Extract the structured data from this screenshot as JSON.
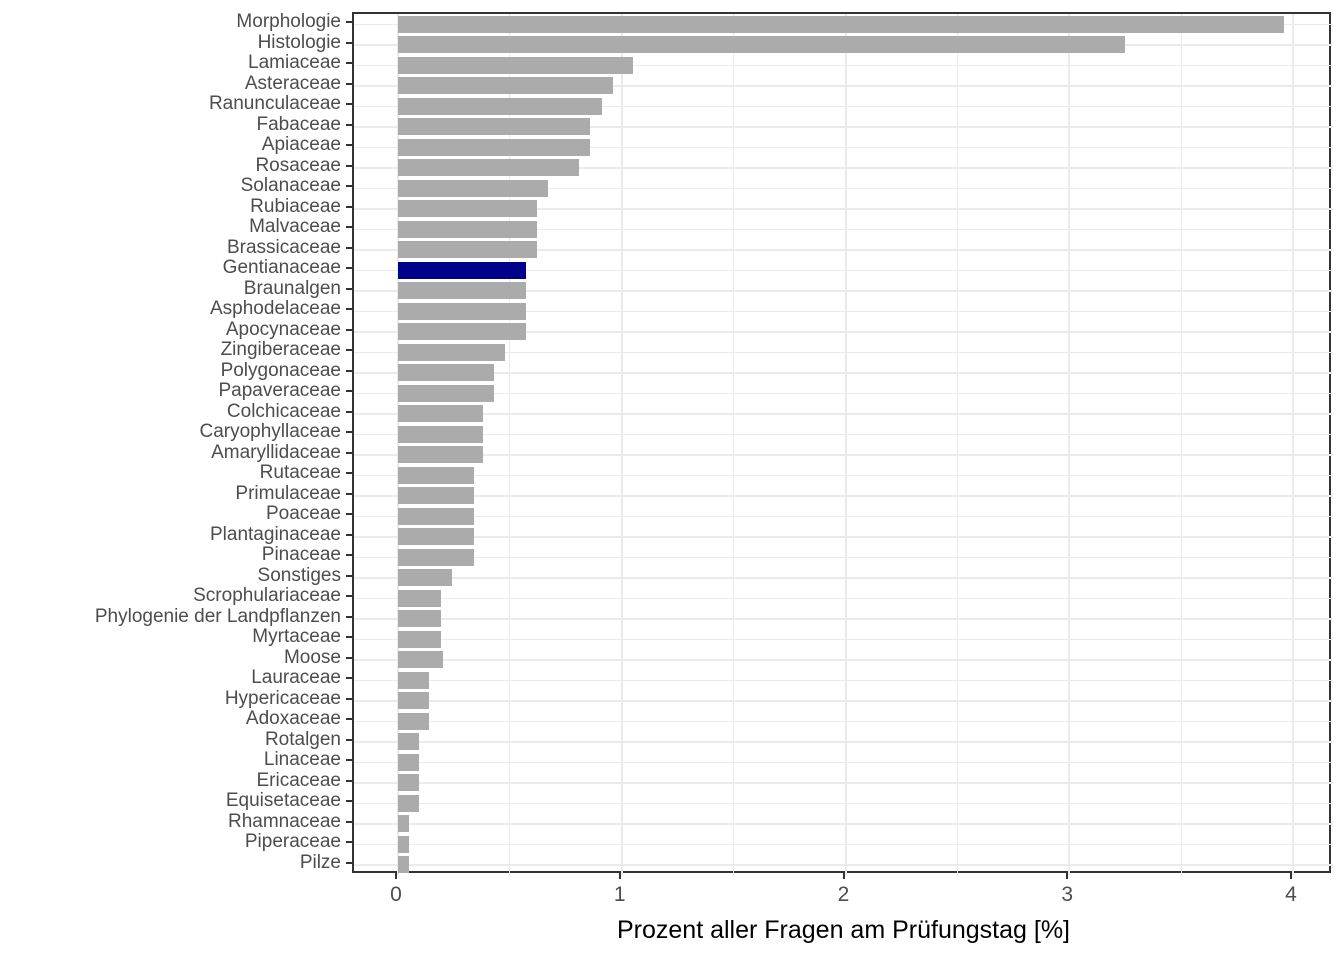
{
  "figure": {
    "xlabel": "Prozent aller Fragen am Prüfungstag [%]"
  },
  "colors": {
    "bar_default": "#ababab",
    "bar_highlight": "#00008b",
    "grid_major": "#ebebeb",
    "grid_minor": "#ebebeb",
    "panel_border": "#333333",
    "tick_mark": "#333333",
    "tick_text": "#4d4d4d",
    "axis_title_text": "#000000"
  },
  "chart_data": {
    "type": "bar",
    "orientation": "horizontal",
    "title": "",
    "xlabel": "Prozent aller Fragen am Prüfungstag [%]",
    "ylabel": "",
    "xlim": [
      -0.2,
      4.18
    ],
    "xticks": [
      0,
      1,
      2,
      3,
      4
    ],
    "grid": "major-and-minor-x, major-y",
    "legend": false,
    "highlighted_category": "Gentianaceae",
    "categories": [
      "Morphologie",
      "Histologie",
      "Lamiaceae",
      "Asteraceae",
      "Ranunculaceae",
      "Fabaceae",
      "Apiaceae",
      "Rosaceae",
      "Solanaceae",
      "Rubiaceae",
      "Malvaceae",
      "Brassicaceae",
      "Gentianaceae",
      "Braunalgen",
      "Asphodelaceae",
      "Apocynaceae",
      "Zingiberaceae",
      "Polygonaceae",
      "Papaveraceae",
      "Colchicaceae",
      "Caryophyllaceae",
      "Amaryllidaceae",
      "Rutaceae",
      "Primulaceae",
      "Poaceae",
      "Plantaginaceae",
      "Pinaceae",
      "Sonstiges",
      "Scrophulariaceae",
      "Phylogenie der Landpflanzen",
      "Myrtaceae",
      "Moose",
      "Lauraceae",
      "Hypericaceae",
      "Adoxaceae",
      "Rotalgen",
      "Linaceae",
      "Ericaceae",
      "Equisetaceae",
      "Rhamnaceae",
      "Piperaceae",
      "Pilze"
    ],
    "values": [
      3.96,
      3.25,
      1.05,
      0.96,
      0.91,
      0.86,
      0.86,
      0.81,
      0.67,
      0.62,
      0.62,
      0.62,
      0.57,
      0.57,
      0.57,
      0.57,
      0.48,
      0.43,
      0.43,
      0.38,
      0.38,
      0.38,
      0.34,
      0.34,
      0.34,
      0.34,
      0.34,
      0.24,
      0.19,
      0.19,
      0.19,
      0.2,
      0.14,
      0.14,
      0.14,
      0.095,
      0.095,
      0.095,
      0.095,
      0.05,
      0.05,
      0.05
    ]
  }
}
